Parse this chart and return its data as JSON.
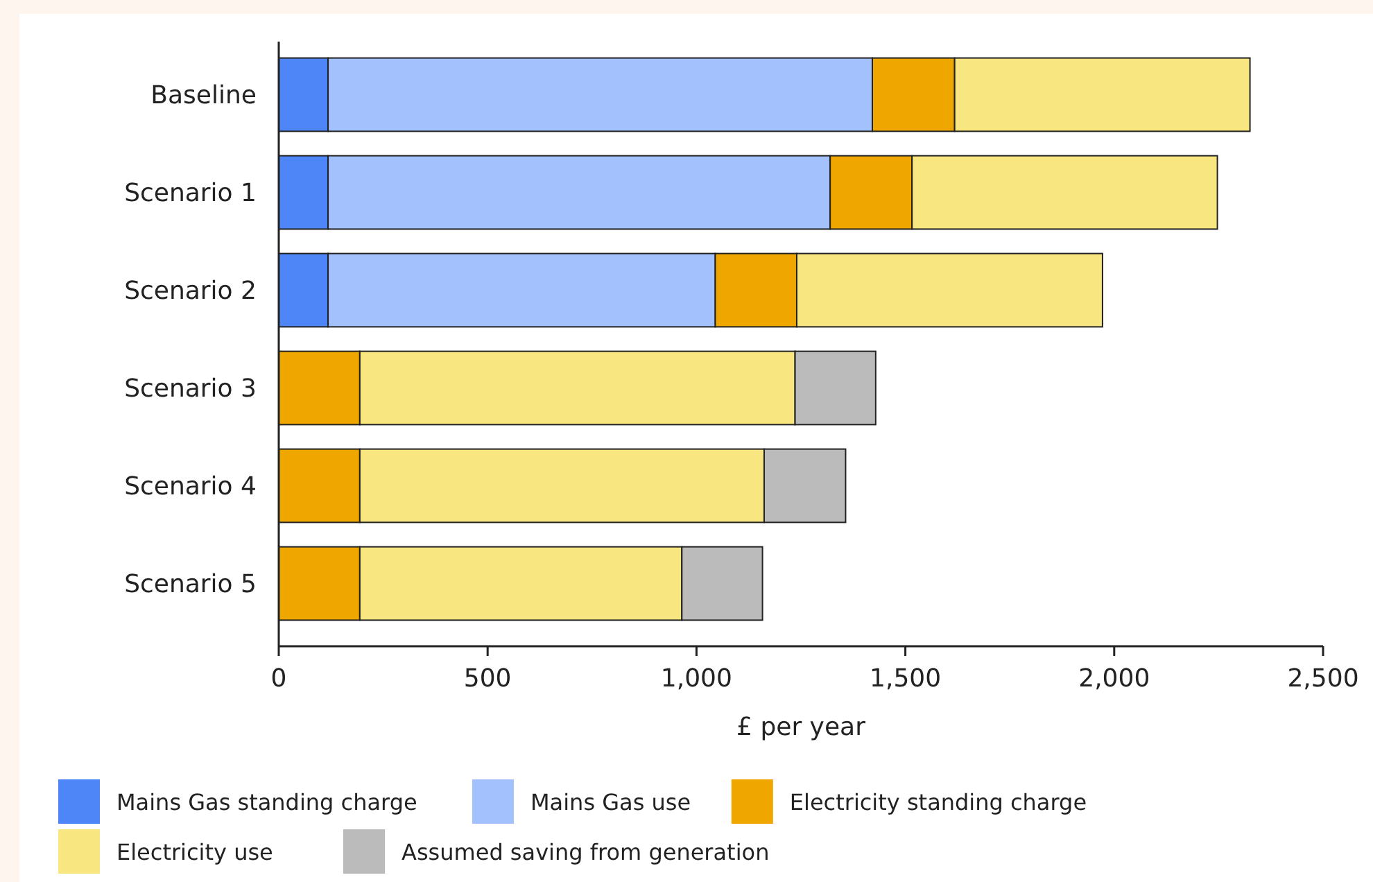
{
  "chart_data": {
    "type": "bar",
    "orientation": "horizontal",
    "stacked": true,
    "xlabel": "£ per year",
    "categories": [
      "Baseline",
      "Scenario 1",
      "Scenario 2",
      "Scenario 3",
      "Scenario 4",
      "Scenario 5"
    ],
    "series": [
      {
        "name": "Mains Gas standing charge",
        "color": "#4f86f7",
        "values": [
          118,
          118,
          118,
          0,
          0,
          0
        ]
      },
      {
        "name": "Mains Gas use",
        "color": "#a3c1fd",
        "values": [
          1303,
          1202,
          927,
          0,
          0,
          0
        ]
      },
      {
        "name": "Electricity standing charge",
        "color": "#efa700",
        "values": [
          197,
          196,
          195,
          194,
          194,
          194
        ]
      },
      {
        "name": "Electricity use",
        "color": "#f8e680",
        "values": [
          707,
          731,
          732,
          1042,
          968,
          771
        ]
      },
      {
        "name": "Assumed saving from generation",
        "color": "#bbbbbb",
        "values": [
          0,
          0,
          0,
          193,
          195,
          193
        ]
      }
    ],
    "xlim": [
      0,
      2500
    ],
    "xticks": [
      0,
      500,
      {
        "value": 1000,
        "label": "1,000"
      },
      {
        "value": 1500,
        "label": "1,500"
      },
      {
        "value": 2000,
        "label": "2,000"
      },
      {
        "value": 2500,
        "label": "2,500"
      }
    ],
    "grid": false,
    "legend": "bottom"
  }
}
